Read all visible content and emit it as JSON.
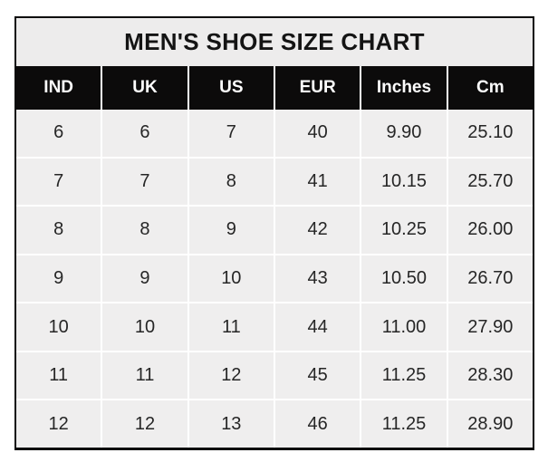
{
  "title": "MEN'S SHOE SIZE CHART",
  "colors": {
    "page_bg": "#ffffff",
    "border": "#0a0a0a",
    "title_bg": "#edecec",
    "title_text": "#141414",
    "header_bg": "#0c0b0b",
    "header_text": "#fdfdfd",
    "cell_bg": "#efeeee",
    "cell_text": "#262626",
    "separator": "#ffffff"
  },
  "chart_data": {
    "type": "table",
    "title": "MEN'S SHOE SIZE CHART",
    "columns": [
      "IND",
      "UK",
      "US",
      "EUR",
      "Inches",
      "Cm"
    ],
    "rows": [
      [
        "6",
        "6",
        "7",
        "40",
        "9.90",
        "25.10"
      ],
      [
        "7",
        "7",
        "8",
        "41",
        "10.15",
        "25.70"
      ],
      [
        "8",
        "8",
        "9",
        "42",
        "10.25",
        "26.00"
      ],
      [
        "9",
        "9",
        "10",
        "43",
        "10.50",
        "26.70"
      ],
      [
        "10",
        "10",
        "11",
        "44",
        "11.00",
        "27.90"
      ],
      [
        "11",
        "11",
        "12",
        "45",
        "11.25",
        "28.30"
      ],
      [
        "12",
        "12",
        "13",
        "46",
        "11.25",
        "28.90"
      ]
    ],
    "layout": {
      "grid": "white separators on light-gray cells",
      "header_style": "black background, white bold text",
      "column_count": 6,
      "row_count": 7
    }
  }
}
